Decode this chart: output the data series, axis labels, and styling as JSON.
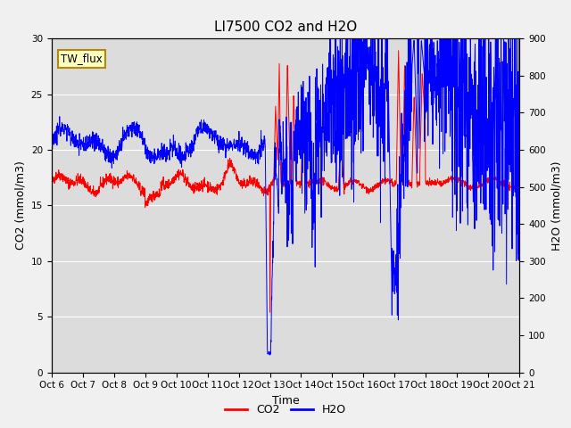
{
  "title": "LI7500 CO2 and H2O",
  "xlabel": "Time",
  "ylabel_left": "CO2 (mmol/m3)",
  "ylabel_right": "H2O (mmol/m3)",
  "co2_color": "#FF0000",
  "h2o_color": "#0000FF",
  "fig_facecolor": "#F0F0F0",
  "plot_bg_color": "#DCDCDC",
  "ylim_left": [
    0,
    30
  ],
  "ylim_right": [
    0,
    900
  ],
  "yticks_left": [
    0,
    5,
    10,
    15,
    20,
    25,
    30
  ],
  "yticks_right": [
    0,
    100,
    200,
    300,
    400,
    500,
    600,
    700,
    800,
    900
  ],
  "xtick_labels": [
    "Oct 6",
    "Oct 7",
    "Oct 8",
    "Oct 9",
    "Oct 10",
    "Oct 11",
    "Oct 12",
    "Oct 13",
    "Oct 14",
    "Oct 15",
    "Oct 16",
    "Oct 17",
    "Oct 18",
    "Oct 19",
    "Oct 20",
    "Oct 21"
  ],
  "legend_label_co2": "CO2",
  "legend_label_h2o": "H2O",
  "annotation_text": "TW_flux",
  "title_fontsize": 11,
  "axis_fontsize": 9,
  "tick_fontsize": 7.5
}
